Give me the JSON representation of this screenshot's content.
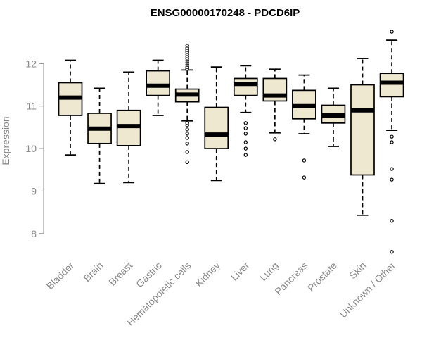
{
  "chart_data": {
    "type": "boxplot",
    "title": "ENSG00000170248 - PDCD6IP",
    "ylabel": "Expression",
    "ylim": [
      7.45,
      12.9
    ],
    "yticks": [
      8,
      9,
      10,
      11,
      12
    ],
    "colors": {
      "box_fill": "#efe8d0",
      "stroke": "#000000",
      "axis": "#8a8a8a"
    },
    "categories": [
      "Bladder",
      "Brain",
      "Breast",
      "Gastric",
      "Hematopoietic cells",
      "Kidney",
      "Liver",
      "Lung",
      "Pancreas",
      "Prostate",
      "Skin",
      "Unknown / Other"
    ],
    "boxes": [
      {
        "category": "Bladder",
        "whisker_low": 9.85,
        "q1": 10.78,
        "median": 11.2,
        "q3": 11.55,
        "whisker_high": 12.08,
        "outliers": []
      },
      {
        "category": "Brain",
        "whisker_low": 9.18,
        "q1": 10.12,
        "median": 10.47,
        "q3": 10.83,
        "whisker_high": 11.42,
        "outliers": []
      },
      {
        "category": "Breast",
        "whisker_low": 9.2,
        "q1": 10.07,
        "median": 10.53,
        "q3": 10.9,
        "whisker_high": 11.8,
        "outliers": []
      },
      {
        "category": "Gastric",
        "whisker_low": 10.78,
        "q1": 11.25,
        "median": 11.48,
        "q3": 11.83,
        "whisker_high": 12.08,
        "outliers": []
      },
      {
        "category": "Hematopoietic cells",
        "whisker_low": 10.65,
        "q1": 11.1,
        "median": 11.27,
        "q3": 11.4,
        "whisker_high": 11.85,
        "outliers": [
          9.68,
          9.92,
          10.12,
          10.25,
          10.35,
          10.45,
          10.55,
          10.6,
          11.88,
          11.92,
          11.97,
          12.02,
          12.07,
          12.12,
          12.17,
          12.22,
          12.27,
          12.32,
          12.37,
          12.42
        ]
      },
      {
        "category": "Kidney",
        "whisker_low": 9.25,
        "q1": 10.0,
        "median": 10.33,
        "q3": 10.97,
        "whisker_high": 11.92,
        "outliers": []
      },
      {
        "category": "Liver",
        "whisker_low": 10.85,
        "q1": 11.25,
        "median": 11.52,
        "q3": 11.65,
        "whisker_high": 11.95,
        "outliers": [
          9.85,
          10.0,
          10.15,
          10.35,
          10.48,
          10.6
        ]
      },
      {
        "category": "Lung",
        "whisker_low": 10.37,
        "q1": 11.12,
        "median": 11.25,
        "q3": 11.65,
        "whisker_high": 11.87,
        "outliers": [
          10.22
        ]
      },
      {
        "category": "Pancreas",
        "whisker_low": 10.35,
        "q1": 10.7,
        "median": 11.0,
        "q3": 11.37,
        "whisker_high": 11.73,
        "outliers": [
          9.32,
          9.72
        ]
      },
      {
        "category": "Prostate",
        "whisker_low": 10.05,
        "q1": 10.6,
        "median": 10.78,
        "q3": 11.02,
        "whisker_high": 11.42,
        "outliers": []
      },
      {
        "category": "Skin",
        "whisker_low": 8.43,
        "q1": 9.38,
        "median": 10.9,
        "q3": 11.5,
        "whisker_high": 12.12,
        "outliers": []
      },
      {
        "category": "Unknown / Other",
        "whisker_low": 10.43,
        "q1": 11.22,
        "median": 11.55,
        "q3": 11.77,
        "whisker_high": 12.55,
        "outliers": [
          7.57,
          8.3,
          9.27,
          9.52,
          10.15,
          10.28,
          12.75
        ]
      }
    ]
  }
}
